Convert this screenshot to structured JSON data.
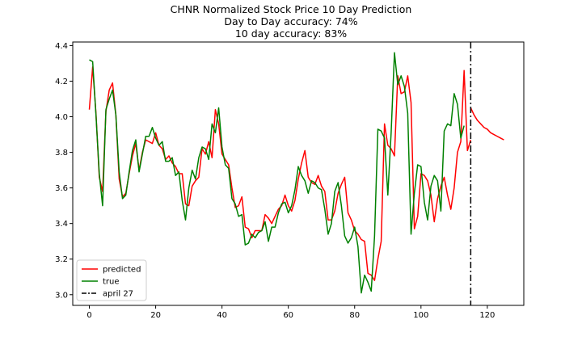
{
  "chart_data": {
    "type": "line",
    "title_lines": [
      "CHNR Normalized Stock Price 10 Day Prediction",
      "Day to Day accuracy: 74%",
      "10 day accuracy: 83%"
    ],
    "xlim": [
      -5,
      131
    ],
    "ylim": [
      2.94,
      4.42
    ],
    "xticks": [
      0,
      20,
      40,
      60,
      80,
      100,
      120
    ],
    "yticks": [
      3.0,
      3.2,
      3.4,
      3.6,
      3.8,
      4.0,
      4.2,
      4.4
    ],
    "ytick_labels": [
      "3.0",
      "3.2",
      "3.4",
      "3.6",
      "3.8",
      "4.0",
      "4.2",
      "4.4"
    ],
    "grid": false,
    "legend_position": "lower-left",
    "series": [
      {
        "name": "predicted",
        "color": "#ff0000",
        "x_start": 0,
        "values": [
          4.04,
          4.28,
          4.02,
          3.66,
          3.58,
          4.03,
          4.15,
          4.19,
          4.01,
          3.65,
          3.55,
          3.57,
          3.68,
          3.78,
          3.85,
          3.7,
          3.8,
          3.87,
          3.86,
          3.85,
          3.91,
          3.84,
          3.82,
          3.76,
          3.78,
          3.74,
          3.72,
          3.68,
          3.68,
          3.51,
          3.5,
          3.61,
          3.64,
          3.66,
          3.82,
          3.79,
          3.86,
          3.77,
          4.04,
          3.96,
          3.79,
          3.76,
          3.73,
          3.6,
          3.49,
          3.5,
          3.55,
          3.38,
          3.37,
          3.32,
          3.36,
          3.36,
          3.36,
          3.45,
          3.43,
          3.4,
          3.44,
          3.48,
          3.5,
          3.56,
          3.5,
          3.47,
          3.53,
          3.65,
          3.74,
          3.81,
          3.66,
          3.63,
          3.62,
          3.67,
          3.61,
          3.58,
          3.42,
          3.42,
          3.47,
          3.57,
          3.62,
          3.66,
          3.46,
          3.42,
          3.36,
          3.34,
          3.31,
          3.3,
          3.12,
          3.11,
          3.08,
          3.2,
          3.3,
          3.96,
          3.84,
          3.82,
          3.78,
          4.23,
          4.13,
          4.14,
          4.23,
          4.08,
          3.37,
          3.44,
          3.68,
          3.67,
          3.64,
          3.56,
          3.41,
          3.54,
          3.61,
          3.66,
          3.56,
          3.48,
          3.6,
          3.8,
          3.86,
          4.26,
          3.81,
          3.87
        ]
      },
      {
        "name": "true",
        "color": "#008000",
        "x_start": 0,
        "values": [
          4.32,
          4.31,
          4.01,
          3.68,
          3.5,
          4.04,
          4.1,
          4.15,
          4.01,
          3.69,
          3.54,
          3.56,
          3.69,
          3.81,
          3.87,
          3.69,
          3.79,
          3.89,
          3.89,
          3.94,
          3.88,
          3.84,
          3.86,
          3.75,
          3.75,
          3.77,
          3.67,
          3.69,
          3.53,
          3.42,
          3.6,
          3.7,
          3.65,
          3.77,
          3.83,
          3.82,
          3.76,
          3.96,
          3.91,
          4.05,
          3.83,
          3.73,
          3.71,
          3.54,
          3.51,
          3.44,
          3.45,
          3.28,
          3.29,
          3.34,
          3.32,
          3.35,
          3.36,
          3.41,
          3.3,
          3.38,
          3.38,
          3.46,
          3.51,
          3.52,
          3.46,
          3.5,
          3.59,
          3.72,
          3.67,
          3.64,
          3.57,
          3.64,
          3.63,
          3.6,
          3.59,
          3.48,
          3.34,
          3.4,
          3.58,
          3.63,
          3.5,
          3.33,
          3.29,
          3.32,
          3.38,
          3.27,
          3.01,
          3.11,
          3.07,
          3.02,
          3.33,
          3.93,
          3.92,
          3.88,
          3.56,
          3.91,
          4.36,
          4.18,
          4.23,
          4.17,
          4.02,
          3.34,
          3.57,
          3.73,
          3.72,
          3.52,
          3.42,
          3.61,
          3.67,
          3.64,
          3.47,
          3.92,
          3.96,
          3.95,
          4.13,
          4.07,
          3.88,
          3.95
        ]
      },
      {
        "name": "",
        "color": "#ff0000",
        "x_start": 115,
        "values": [
          4.05,
          4.01,
          3.98,
          3.96,
          3.94,
          3.93,
          3.91,
          3.9,
          3.89,
          3.88,
          3.87
        ]
      }
    ],
    "vline": {
      "name": "april 27",
      "x": 115,
      "style": "dashdot",
      "color": "#000000"
    },
    "legend": [
      {
        "label": "predicted",
        "color": "#ff0000",
        "style": "solid"
      },
      {
        "label": "true",
        "color": "#008000",
        "style": "solid"
      },
      {
        "label": "april 27",
        "color": "#000000",
        "style": "dashdot"
      }
    ]
  }
}
